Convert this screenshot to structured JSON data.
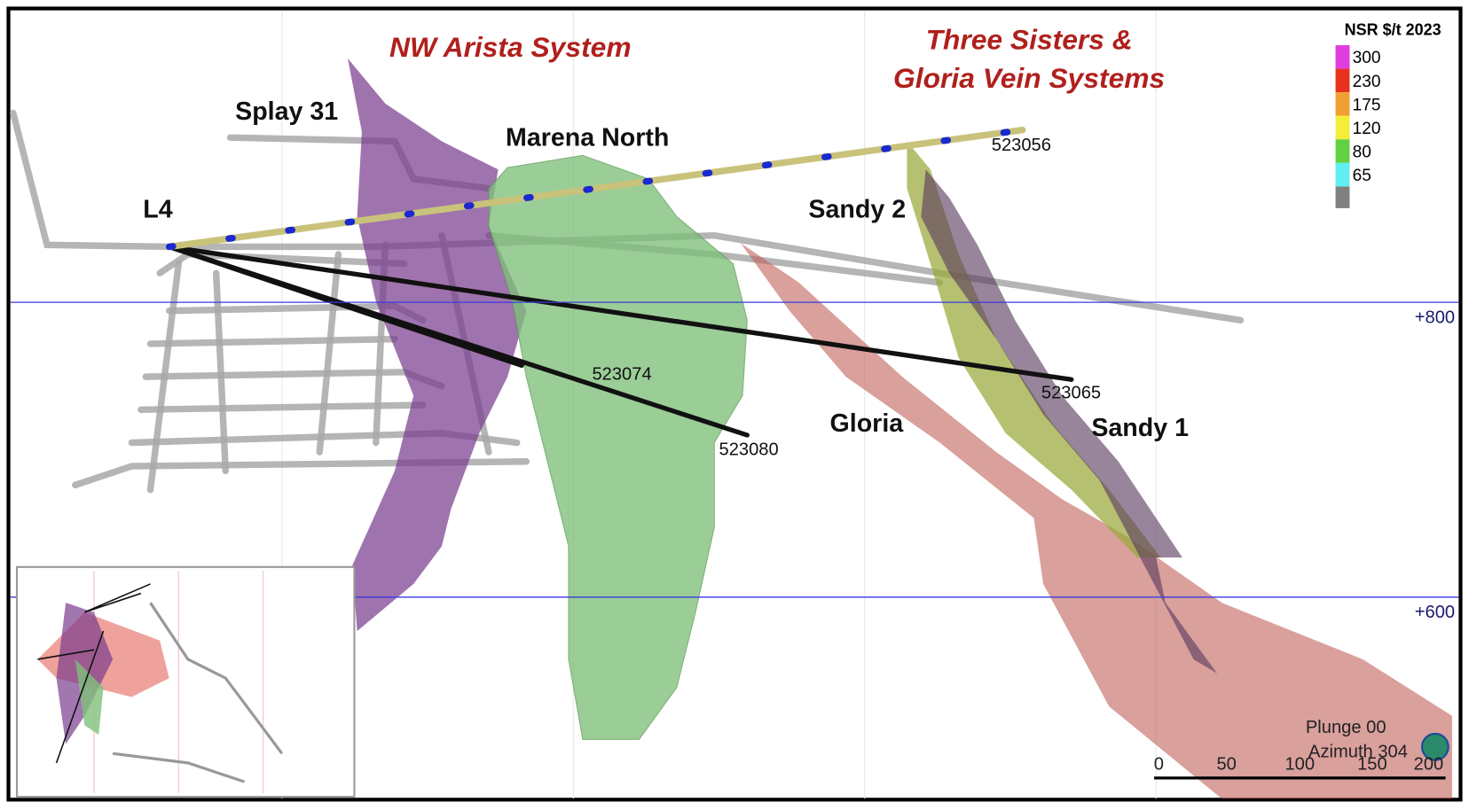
{
  "titles": [
    "NW Arista System",
    "Three Sisters &",
    "Gloria Vein Systems"
  ],
  "zones": [
    "Splay 31",
    "Marena North",
    "L4",
    "Sandy 2",
    "Gloria",
    "Sandy 1"
  ],
  "holes": [
    "523056",
    "523074",
    "523065",
    "523080"
  ],
  "elevations": [
    "+800",
    "+600"
  ],
  "legend": {
    "title": "NSR $/t 2023",
    "items": [
      {
        "label": "300",
        "color": "#e03ce0"
      },
      {
        "label": "230",
        "color": "#e8321e"
      },
      {
        "label": "175",
        "color": "#f0a030"
      },
      {
        "label": "120",
        "color": "#f2ee3a"
      },
      {
        "label": "80",
        "color": "#62d044"
      },
      {
        "label": "65",
        "color": "#62eef0"
      }
    ]
  },
  "view": {
    "plunge": "Plunge 00",
    "azimuth": "Azimuth 304"
  },
  "scale": [
    "0",
    "50",
    "100",
    "150",
    "200"
  ]
}
